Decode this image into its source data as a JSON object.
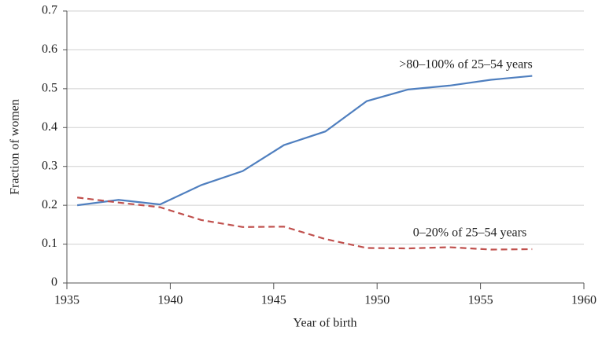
{
  "chart_data": {
    "type": "line",
    "x_label": "Year of birth",
    "y_label": "Fraction of women",
    "x": [
      1935.5,
      1937.5,
      1939.5,
      1941.5,
      1943.5,
      1945.5,
      1947.5,
      1949.5,
      1951.5,
      1953.5,
      1955.5,
      1957.5
    ],
    "series": [
      {
        "name": ">80–100% of 25–54 years",
        "color": "#4f7fbf",
        "dashed": false,
        "values": [
          0.2,
          0.214,
          0.202,
          0.252,
          0.288,
          0.355,
          0.39,
          0.468,
          0.498,
          0.508,
          0.523,
          0.533
        ]
      },
      {
        "name": "0–20% of 25–54 years",
        "color": "#c0504d",
        "dashed": true,
        "values": [
          0.22,
          0.207,
          0.195,
          0.162,
          0.144,
          0.145,
          0.113,
          0.09,
          0.089,
          0.092,
          0.086,
          0.087
        ]
      }
    ],
    "xlim": [
      1935,
      1960
    ],
    "xticks": [
      1935,
      1940,
      1945,
      1950,
      1955,
      1960
    ],
    "ylim": [
      0,
      0.7
    ],
    "yticks": [
      0,
      0.1,
      0.2,
      0.3,
      0.4,
      0.5,
      0.6,
      0.7
    ],
    "grid": true
  }
}
